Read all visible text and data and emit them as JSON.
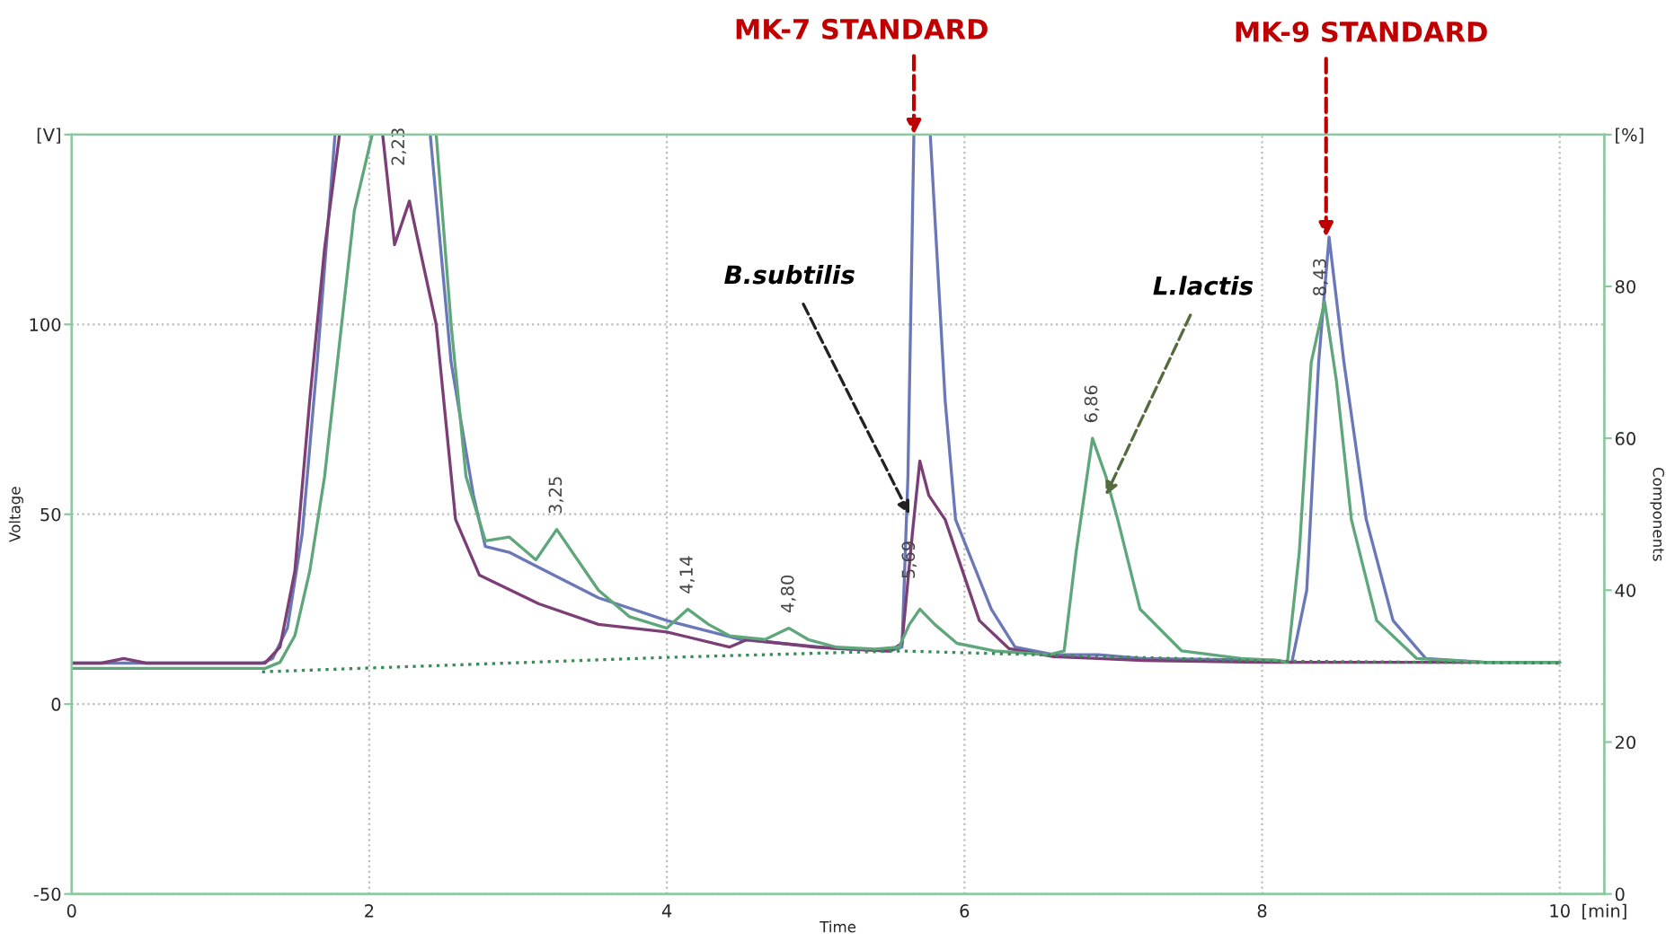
{
  "chart_data": {
    "type": "line",
    "xlabel": "Time",
    "ylabel": "Voltage",
    "y2label": "Components",
    "xlim": [
      0,
      10.3
    ],
    "xticks": [
      0,
      2,
      4,
      6,
      8,
      10,
      {
        "value": 10.3,
        "label": "[min]"
      }
    ],
    "ylim": [
      -50,
      150
    ],
    "yticks": [
      -50,
      0,
      50,
      100,
      {
        "value": 150,
        "label": "[V]"
      }
    ],
    "y2lim": [
      0,
      100
    ],
    "y2ticks": [
      0,
      20,
      40,
      60,
      80,
      {
        "value": 100,
        "label": "[%]"
      }
    ],
    "grid": true,
    "legend": false,
    "marker": "none",
    "series": [
      {
        "color": "#6a78b8",
        "line_style": "solid",
        "x": [
          0,
          0.5,
          1.0,
          1.28,
          1.35,
          1.45,
          1.55,
          1.65,
          1.77,
          2.1,
          2.41,
          2.55,
          2.7,
          2.78,
          2.94,
          3.14,
          3.54,
          4.0,
          4.5,
          5.14,
          5.5,
          5.58,
          5.62,
          5.66,
          5.71,
          5.77,
          5.87,
          5.94,
          6.18,
          6.34,
          6.6,
          6.9,
          7.2,
          8.1,
          8.2,
          8.3,
          8.38,
          8.45,
          8.55,
          8.7,
          8.88,
          9.1,
          9.5,
          10
        ],
        "values": [
          10.8,
          10.8,
          10.8,
          10.8,
          12,
          20,
          45,
          90,
          150,
          null,
          150,
          90,
          55,
          41.5,
          40,
          36,
          28,
          22,
          17,
          14.6,
          14,
          15,
          60,
          150,
          null,
          150,
          80,
          48.6,
          25,
          15,
          13,
          13,
          12,
          11.5,
          11,
          30,
          90,
          123,
          90,
          48.6,
          22,
          12,
          11,
          11
        ]
      },
      {
        "color": "#7b3f75",
        "line_style": "solid",
        "x": [
          0,
          0.2,
          0.35,
          0.5,
          1.0,
          1.3,
          1.4,
          1.5,
          1.6,
          1.7,
          1.8,
          1.95,
          2.09,
          2.17,
          2.27,
          2.45,
          2.58,
          2.74,
          3.14,
          3.54,
          4.0,
          4.42,
          4.54,
          5.0,
          5.5,
          5.58,
          5.65,
          5.7,
          5.76,
          5.87,
          6.1,
          6.3,
          6.6,
          6.9,
          7.2,
          8.0,
          9.0,
          10
        ],
        "values": [
          10.8,
          10.8,
          12,
          10.8,
          10.8,
          10.8,
          15,
          35,
          80,
          120,
          150,
          null,
          150,
          121,
          132.5,
          100,
          48.6,
          34,
          26.4,
          21,
          19,
          15,
          17,
          15,
          14,
          16,
          45,
          64,
          55,
          48.6,
          22,
          14.6,
          12.5,
          12,
          11.5,
          11,
          11,
          11
        ]
      },
      {
        "color": "#5fa77a",
        "line_style": "solid",
        "x": [
          0,
          0.5,
          1.0,
          1.3,
          1.4,
          1.5,
          1.6,
          1.7,
          1.8,
          1.9,
          2.02,
          2.2,
          2.45,
          2.55,
          2.65,
          2.78,
          2.94,
          3.12,
          3.26,
          3.4,
          3.54,
          3.75,
          4.0,
          4.14,
          4.28,
          4.42,
          4.66,
          4.82,
          4.95,
          5.14,
          5.4,
          5.56,
          5.63,
          5.7,
          5.8,
          5.95,
          6.2,
          6.57,
          6.67,
          6.75,
          6.86,
          6.95,
          7.03,
          7.18,
          7.46,
          7.86,
          8.1,
          8.17,
          8.25,
          8.33,
          8.42,
          8.5,
          8.6,
          8.77,
          9.04,
          9.5,
          10
        ],
        "values": [
          9.4,
          9.4,
          9.4,
          9.4,
          11,
          18,
          35,
          60,
          95,
          130,
          150,
          null,
          150,
          100,
          60,
          43,
          44,
          38,
          46,
          38,
          30,
          23,
          20,
          25,
          21,
          18,
          17,
          20,
          17,
          15,
          14.5,
          15,
          21,
          25,
          21,
          16,
          14,
          13,
          14,
          40,
          70,
          60,
          48.6,
          25,
          14,
          12,
          11.5,
          11,
          40,
          90,
          106,
          85,
          48.6,
          22,
          12,
          11,
          11
        ]
      },
      {
        "color": "#3c8c5a",
        "line_style": "dotted",
        "x": [
          1.28,
          4.0,
          5.56,
          8.1,
          10
        ],
        "values": [
          8.5,
          12.3,
          14,
          11.3,
          10.8
        ]
      }
    ],
    "annotations": [
      {
        "text": "2,23",
        "x": 2.27,
        "y": 132.5
      },
      {
        "text": "3,25",
        "x": 3.26,
        "y": 46
      },
      {
        "text": "4,14",
        "x": 4.14,
        "y": 25
      },
      {
        "text": "4,80",
        "x": 4.82,
        "y": 20
      },
      {
        "text": "5,69",
        "x": 5.7,
        "y": 25
      },
      {
        "text": "6,86",
        "x": 6.86,
        "y": 70
      },
      {
        "text": "8,43",
        "x": 8.43,
        "y": 106
      },
      {
        "text": "B.subtilis",
        "x": 5.63,
        "y": 50
      },
      {
        "text": "L.lactis",
        "x": 6.95,
        "y": 55
      },
      {
        "text": "MK-7 STANDARD",
        "x": 5.66,
        "y": 150
      },
      {
        "text": "MK-9 STANDARD",
        "x": 8.43,
        "y": 123
      }
    ]
  }
}
